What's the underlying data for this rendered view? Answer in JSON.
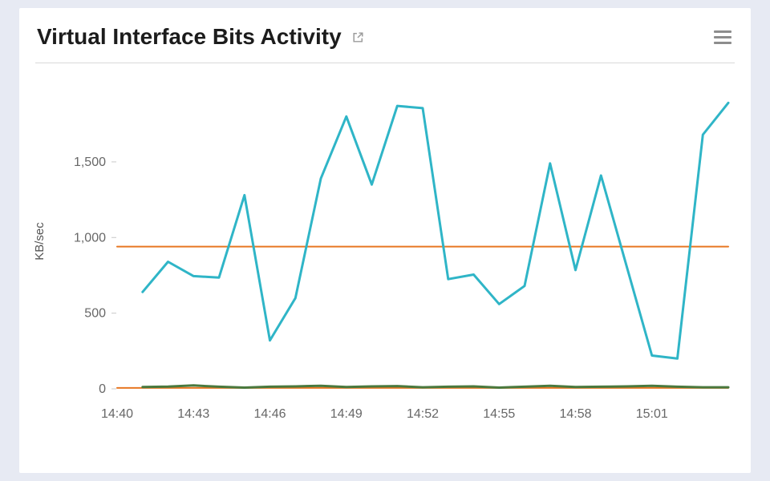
{
  "page": {
    "background_color": "#e7eaf3"
  },
  "card": {
    "title": "Virtual Interface Bits Activity",
    "external_link_icon": "open-in-new-window-icon",
    "menu_icon": "hamburger-menu-icon"
  },
  "chart_data": {
    "type": "line",
    "title": "Virtual Interface Bits Activity",
    "xlabel": "",
    "ylabel": "KB/sec",
    "units": "KB/sec",
    "grid": false,
    "legend": "none",
    "xlim": [
      0,
      24
    ],
    "ylim": [
      0,
      1950
    ],
    "x_base_time": "14:40",
    "x_ticks": [
      {
        "label": "14:40",
        "minute": 0
      },
      {
        "label": "14:43",
        "minute": 3
      },
      {
        "label": "14:46",
        "minute": 6
      },
      {
        "label": "14:49",
        "minute": 9
      },
      {
        "label": "14:52",
        "minute": 12
      },
      {
        "label": "14:55",
        "minute": 15
      },
      {
        "label": "14:58",
        "minute": 18
      },
      {
        "label": "15:01",
        "minute": 21
      }
    ],
    "y_ticks": [
      {
        "label": "0",
        "value": 0
      },
      {
        "label": "500",
        "value": 500
      },
      {
        "label": "1,000",
        "value": 1000
      },
      {
        "label": "1,500",
        "value": 1500
      }
    ],
    "colors": {
      "teal": "#2fb5c7",
      "orange": "#e87722",
      "green": "#49793e",
      "axis_text": "#676767",
      "tick_mark": "#c8c8c8"
    },
    "series": [
      {
        "name": "orange-baseline",
        "color": "#e87722",
        "width": 2,
        "x": [
          0,
          24
        ],
        "values": [
          6,
          6
        ]
      },
      {
        "name": "green-baseline",
        "color": "#49793e",
        "width": 3,
        "x": [
          1,
          2,
          3,
          4,
          5,
          6,
          7,
          8,
          9,
          10,
          11,
          12,
          13,
          14,
          15,
          16,
          17,
          18,
          19,
          20,
          21,
          22,
          23,
          24
        ],
        "values": [
          12,
          15,
          22,
          14,
          8,
          14,
          16,
          20,
          12,
          16,
          18,
          10,
          14,
          16,
          8,
          14,
          20,
          12,
          14,
          16,
          20,
          14,
          10,
          10
        ]
      },
      {
        "name": "orange-threshold",
        "color": "#e87722",
        "width": 2,
        "x": [
          0,
          24
        ],
        "values": [
          940,
          940
        ]
      },
      {
        "name": "virtual-interface-bits",
        "color": "#2fb5c7",
        "width": 3,
        "x": [
          1,
          2,
          3,
          4,
          5,
          6,
          7,
          8,
          9,
          10,
          11,
          12,
          13,
          14,
          15,
          16,
          17,
          18,
          19,
          20,
          21,
          22,
          23,
          24
        ],
        "values": [
          640,
          840,
          745,
          735,
          1280,
          320,
          600,
          1390,
          1800,
          1350,
          1870,
          1855,
          725,
          755,
          560,
          680,
          1490,
          785,
          1410,
          815,
          220,
          200,
          1680,
          1890
        ]
      }
    ]
  }
}
